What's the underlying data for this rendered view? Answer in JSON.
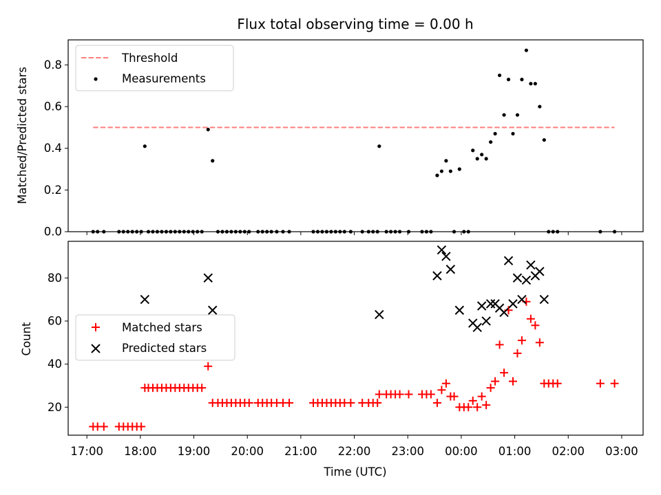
{
  "chart_data": [
    {
      "type": "scatter",
      "title": "Flux total observing time = 0.00 h",
      "xlabel": "",
      "ylabel": "Matched/Predicted stars",
      "ylim": [
        0,
        0.92
      ],
      "yticks": [
        0.0,
        0.2,
        0.4,
        0.6,
        0.8
      ],
      "ytick_labels": [
        "0.0",
        "0.2",
        "0.4",
        "0.6",
        "0.8"
      ],
      "xlim": [
        "16:39",
        "03:24"
      ],
      "xticks": [
        "17:00",
        "18:00",
        "19:00",
        "20:00",
        "21:00",
        "22:00",
        "23:00",
        "00:00",
        "01:00",
        "02:00",
        "03:00"
      ],
      "legend_position": "top-left",
      "series": [
        {
          "name": "Threshold",
          "kind": "dashed-line",
          "color": "#ff7f7f",
          "points": [
            [
              "17:07",
              0.5
            ],
            [
              "02:52",
              0.5
            ]
          ]
        },
        {
          "name": "Measurements",
          "kind": "points",
          "color": "#000000",
          "points": [
            [
              "17:07",
              0
            ],
            [
              "17:12",
              0
            ],
            [
              "17:19",
              0
            ],
            [
              "17:36",
              0
            ],
            [
              "17:41",
              0
            ],
            [
              "17:46",
              0
            ],
            [
              "17:51",
              0
            ],
            [
              "17:56",
              0
            ],
            [
              "18:01",
              0
            ],
            [
              "18:05",
              0.41
            ],
            [
              "18:09",
              0
            ],
            [
              "18:14",
              0
            ],
            [
              "18:19",
              0
            ],
            [
              "18:24",
              0
            ],
            [
              "18:29",
              0
            ],
            [
              "18:34",
              0
            ],
            [
              "18:39",
              0
            ],
            [
              "18:44",
              0
            ],
            [
              "18:49",
              0
            ],
            [
              "18:54",
              0
            ],
            [
              "18:59",
              0
            ],
            [
              "19:04",
              0
            ],
            [
              "19:09",
              0
            ],
            [
              "19:16",
              0.49
            ],
            [
              "19:21",
              0.34
            ],
            [
              "19:27",
              0
            ],
            [
              "19:32",
              0
            ],
            [
              "19:37",
              0
            ],
            [
              "19:42",
              0
            ],
            [
              "19:47",
              0
            ],
            [
              "19:52",
              0
            ],
            [
              "19:57",
              0
            ],
            [
              "20:02",
              0
            ],
            [
              "20:12",
              0
            ],
            [
              "20:17",
              0
            ],
            [
              "20:22",
              0
            ],
            [
              "20:27",
              0
            ],
            [
              "20:33",
              0
            ],
            [
              "20:40",
              0
            ],
            [
              "20:47",
              0
            ],
            [
              "21:14",
              0
            ],
            [
              "21:19",
              0
            ],
            [
              "21:24",
              0
            ],
            [
              "21:29",
              0
            ],
            [
              "21:34",
              0
            ],
            [
              "21:39",
              0
            ],
            [
              "21:44",
              0
            ],
            [
              "21:49",
              0
            ],
            [
              "21:56",
              0
            ],
            [
              "22:09",
              0
            ],
            [
              "22:16",
              0
            ],
            [
              "22:21",
              0
            ],
            [
              "22:26",
              0
            ],
            [
              "22:28",
              0.41
            ],
            [
              "22:36",
              0
            ],
            [
              "22:41",
              0
            ],
            [
              "22:46",
              0
            ],
            [
              "22:51",
              0
            ],
            [
              "23:01",
              0
            ],
            [
              "23:16",
              0
            ],
            [
              "23:21",
              0
            ],
            [
              "23:26",
              0
            ],
            [
              "23:33",
              0.27
            ],
            [
              "23:38",
              0.29
            ],
            [
              "23:43",
              0.34
            ],
            [
              "23:48",
              0.29
            ],
            [
              "23:52",
              0
            ],
            [
              "23:58",
              0.3
            ],
            [
              "00:03",
              0
            ],
            [
              "00:08",
              0
            ],
            [
              "00:13",
              0.39
            ],
            [
              "00:18",
              0.35
            ],
            [
              "00:23",
              0.37
            ],
            [
              "00:28",
              0.35
            ],
            [
              "00:33",
              0.43
            ],
            [
              "00:38",
              0.47
            ],
            [
              "00:43",
              0.75
            ],
            [
              "00:48",
              0.56
            ],
            [
              "00:53",
              0.73
            ],
            [
              "00:58",
              0.47
            ],
            [
              "01:03",
              0.56
            ],
            [
              "01:08",
              0.73
            ],
            [
              "01:13",
              0.87
            ],
            [
              "01:18",
              0.71
            ],
            [
              "01:23",
              0.71
            ],
            [
              "01:28",
              0.6
            ],
            [
              "01:33",
              0.44
            ],
            [
              "01:38",
              0
            ],
            [
              "01:43",
              0
            ],
            [
              "01:48",
              0
            ],
            [
              "02:36",
              0
            ],
            [
              "02:52",
              0
            ]
          ]
        }
      ]
    },
    {
      "type": "scatter",
      "title": "",
      "xlabel": "Time (UTC)",
      "ylabel": "Count",
      "ylim": [
        7,
        97
      ],
      "yticks": [
        20,
        40,
        60,
        80
      ],
      "ytick_labels": [
        "20",
        "40",
        "60",
        "80"
      ],
      "xlim": [
        "16:39",
        "03:24"
      ],
      "xticks": [
        "17:00",
        "18:00",
        "19:00",
        "20:00",
        "21:00",
        "22:00",
        "23:00",
        "00:00",
        "01:00",
        "02:00",
        "03:00"
      ],
      "xtick_labels": [
        "17:00",
        "18:00",
        "19:00",
        "20:00",
        "21:00",
        "22:00",
        "23:00",
        "00:00",
        "01:00",
        "02:00",
        "03:00"
      ],
      "legend_position": "center-left",
      "series": [
        {
          "name": "Matched stars",
          "marker": "plus",
          "color": "#ff0000",
          "points": [
            [
              "17:07",
              11
            ],
            [
              "17:12",
              11
            ],
            [
              "17:19",
              11
            ],
            [
              "17:36",
              11
            ],
            [
              "17:41",
              11
            ],
            [
              "17:46",
              11
            ],
            [
              "17:51",
              11
            ],
            [
              "17:56",
              11
            ],
            [
              "18:01",
              11
            ],
            [
              "18:05",
              29
            ],
            [
              "18:09",
              29
            ],
            [
              "18:14",
              29
            ],
            [
              "18:19",
              29
            ],
            [
              "18:24",
              29
            ],
            [
              "18:29",
              29
            ],
            [
              "18:34",
              29
            ],
            [
              "18:39",
              29
            ],
            [
              "18:44",
              29
            ],
            [
              "18:49",
              29
            ],
            [
              "18:54",
              29
            ],
            [
              "18:59",
              29
            ],
            [
              "19:04",
              29
            ],
            [
              "19:09",
              29
            ],
            [
              "19:16",
              39
            ],
            [
              "19:21",
              22
            ],
            [
              "19:27",
              22
            ],
            [
              "19:32",
              22
            ],
            [
              "19:37",
              22
            ],
            [
              "19:42",
              22
            ],
            [
              "19:47",
              22
            ],
            [
              "19:52",
              22
            ],
            [
              "19:57",
              22
            ],
            [
              "20:02",
              22
            ],
            [
              "20:12",
              22
            ],
            [
              "20:17",
              22
            ],
            [
              "20:22",
              22
            ],
            [
              "20:27",
              22
            ],
            [
              "20:33",
              22
            ],
            [
              "20:40",
              22
            ],
            [
              "20:47",
              22
            ],
            [
              "21:14",
              22
            ],
            [
              "21:19",
              22
            ],
            [
              "21:24",
              22
            ],
            [
              "21:29",
              22
            ],
            [
              "21:34",
              22
            ],
            [
              "21:39",
              22
            ],
            [
              "21:44",
              22
            ],
            [
              "21:49",
              22
            ],
            [
              "21:56",
              22
            ],
            [
              "22:09",
              22
            ],
            [
              "22:16",
              22
            ],
            [
              "22:21",
              22
            ],
            [
              "22:26",
              22
            ],
            [
              "22:28",
              26
            ],
            [
              "22:36",
              26
            ],
            [
              "22:41",
              26
            ],
            [
              "22:46",
              26
            ],
            [
              "22:51",
              26
            ],
            [
              "23:01",
              26
            ],
            [
              "23:16",
              26
            ],
            [
              "23:21",
              26
            ],
            [
              "23:26",
              26
            ],
            [
              "23:33",
              22
            ],
            [
              "23:38",
              28
            ],
            [
              "23:43",
              31
            ],
            [
              "23:48",
              25
            ],
            [
              "23:52",
              25
            ],
            [
              "23:58",
              20
            ],
            [
              "00:03",
              20
            ],
            [
              "00:08",
              20
            ],
            [
              "00:13",
              23
            ],
            [
              "00:18",
              20
            ],
            [
              "00:23",
              25
            ],
            [
              "00:28",
              21
            ],
            [
              "00:33",
              29
            ],
            [
              "00:38",
              32
            ],
            [
              "00:43",
              49
            ],
            [
              "00:48",
              36
            ],
            [
              "00:53",
              65
            ],
            [
              "00:58",
              32
            ],
            [
              "01:03",
              45
            ],
            [
              "01:08",
              51
            ],
            [
              "01:13",
              69
            ],
            [
              "01:18",
              61
            ],
            [
              "01:23",
              58
            ],
            [
              "01:28",
              50
            ],
            [
              "01:33",
              31
            ],
            [
              "01:38",
              31
            ],
            [
              "01:43",
              31
            ],
            [
              "01:48",
              31
            ],
            [
              "02:36",
              31
            ],
            [
              "02:52",
              31
            ]
          ]
        },
        {
          "name": "Predicted stars",
          "marker": "x",
          "color": "#000000",
          "points": [
            [
              "18:05",
              70
            ],
            [
              "19:16",
              80
            ],
            [
              "19:21",
              65
            ],
            [
              "22:28",
              63
            ],
            [
              "23:33",
              81
            ],
            [
              "23:38",
              93
            ],
            [
              "23:43",
              90
            ],
            [
              "23:48",
              84
            ],
            [
              "23:58",
              65
            ],
            [
              "00:13",
              59
            ],
            [
              "00:18",
              57
            ],
            [
              "00:23",
              67
            ],
            [
              "00:28",
              60
            ],
            [
              "00:33",
              68
            ],
            [
              "00:38",
              68
            ],
            [
              "00:43",
              66
            ],
            [
              "00:48",
              64
            ],
            [
              "00:53",
              88
            ],
            [
              "00:58",
              68
            ],
            [
              "01:03",
              80
            ],
            [
              "01:08",
              70
            ],
            [
              "01:13",
              79
            ],
            [
              "01:18",
              86
            ],
            [
              "01:23",
              81
            ],
            [
              "01:28",
              83
            ],
            [
              "01:33",
              70
            ]
          ]
        }
      ]
    }
  ]
}
